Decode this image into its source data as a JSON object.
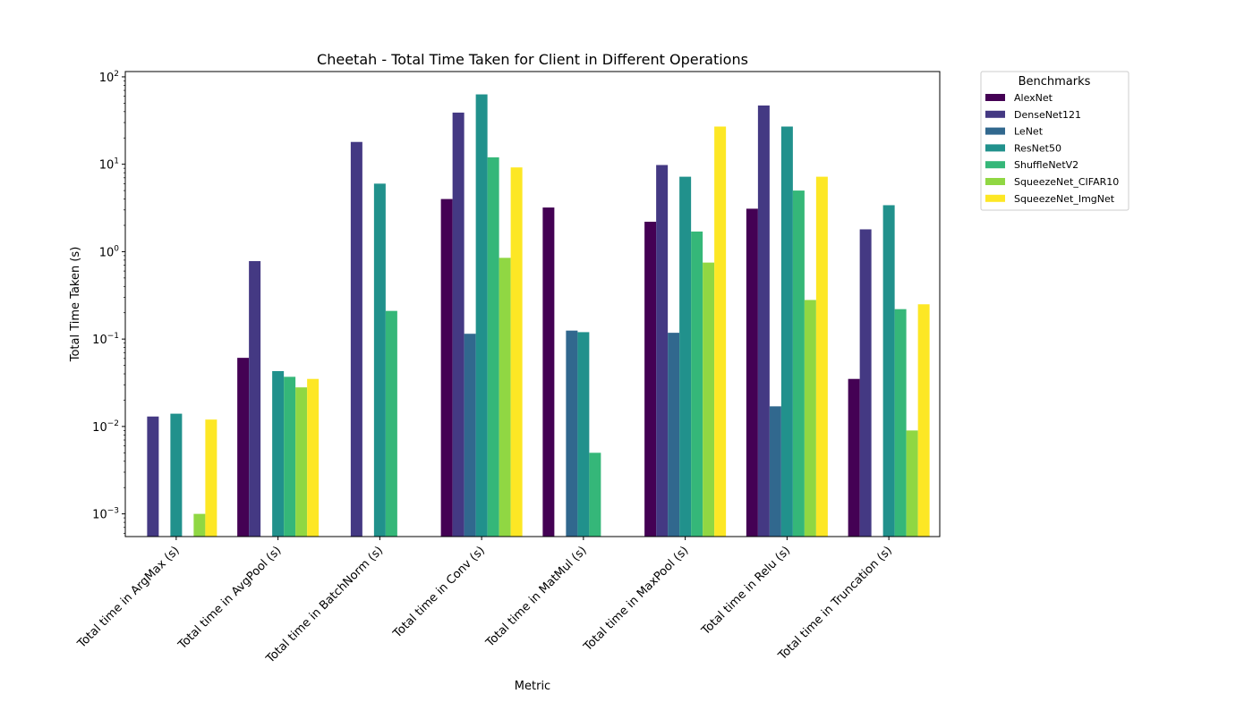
{
  "chart_data": {
    "type": "bar",
    "title": "Cheetah - Total Time Taken for Client in Different Operations",
    "xlabel": "Metric",
    "ylabel": "Total Time Taken (s)",
    "yscale": "log",
    "ylim": [
      0.00055,
      115
    ],
    "yticks": [
      {
        "value": 0.001,
        "base": "10",
        "exp": "−3"
      },
      {
        "value": 0.01,
        "base": "10",
        "exp": "−2"
      },
      {
        "value": 0.1,
        "base": "10",
        "exp": "−1"
      },
      {
        "value": 1,
        "base": "10",
        "exp": "0"
      },
      {
        "value": 10,
        "base": "10",
        "exp": "1"
      },
      {
        "value": 100,
        "base": "10",
        "exp": "2"
      }
    ],
    "grid": false,
    "legend": {
      "title": "Benchmarks",
      "placement": "outside-top-right"
    },
    "categories": [
      "Total time in ArgMax (s)",
      "Total time in AvgPool (s)",
      "Total time in BatchNorm (s)",
      "Total time in Conv (s)",
      "Total time in MatMul (s)",
      "Total time in MaxPool (s)",
      "Total time in Relu (s)",
      "Total time in Truncation (s)"
    ],
    "series": [
      {
        "name": "AlexNet",
        "color": "#440154",
        "values": [
          null,
          0.061,
          null,
          4.0,
          3.2,
          2.2,
          3.1,
          0.035
        ]
      },
      {
        "name": "DenseNet121",
        "color": "#443983",
        "values": [
          0.013,
          0.78,
          18,
          39,
          null,
          9.8,
          47,
          1.8
        ]
      },
      {
        "name": "LeNet",
        "color": "#31688e",
        "values": [
          null,
          null,
          null,
          0.115,
          0.125,
          0.118,
          0.017,
          null
        ]
      },
      {
        "name": "ResNet50",
        "color": "#21918c",
        "values": [
          0.014,
          0.043,
          6.0,
          63,
          0.12,
          7.2,
          27,
          3.4
        ]
      },
      {
        "name": "ShuffleNetV2",
        "color": "#35b779",
        "values": [
          null,
          0.037,
          0.21,
          12,
          0.005,
          1.7,
          5.0,
          0.22
        ]
      },
      {
        "name": "SqueezeNet_CIFAR10",
        "color": "#90d743",
        "values": [
          0.001,
          0.028,
          null,
          0.85,
          null,
          0.75,
          0.28,
          0.009
        ]
      },
      {
        "name": "SqueezeNet_ImgNet",
        "color": "#fde725",
        "values": [
          0.012,
          0.035,
          null,
          9.2,
          null,
          27,
          7.2,
          0.25
        ]
      }
    ]
  }
}
